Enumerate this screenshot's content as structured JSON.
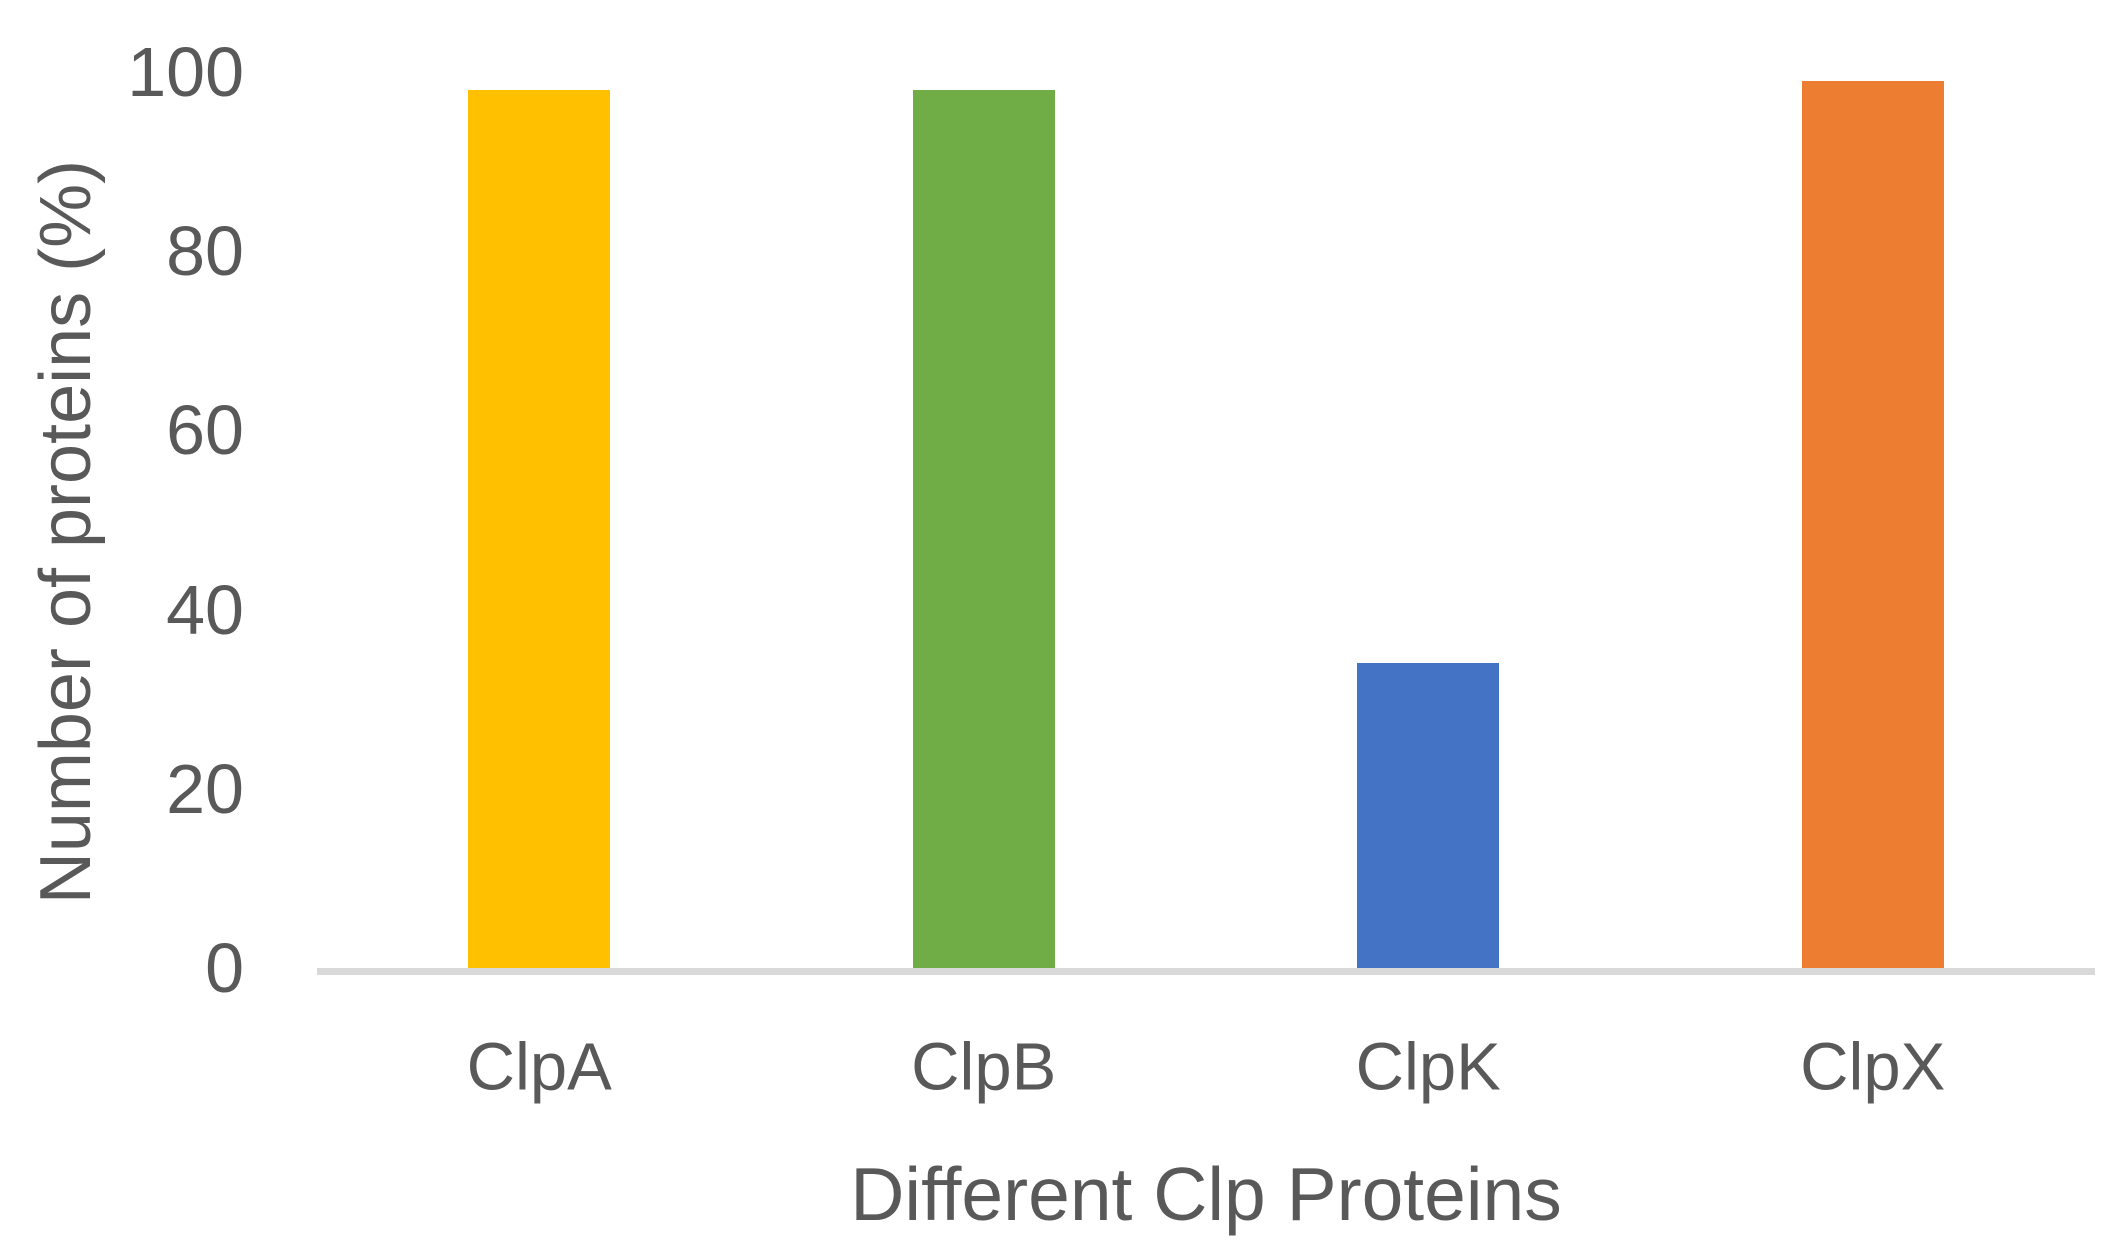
{
  "chart_data": {
    "type": "bar",
    "categories": [
      "ClpA",
      "ClpB",
      "ClpK",
      "ClpX"
    ],
    "values": [
      98,
      98,
      34,
      99
    ],
    "title": "",
    "xlabel": "Different Clp Proteins",
    "ylabel": "Number of proteins (%)",
    "ylim": [
      0,
      100
    ],
    "yticks": [
      0,
      20,
      40,
      60,
      80,
      100
    ],
    "grid": false,
    "legend": false,
    "bar_colors": [
      "#FFC000",
      "#70AD47",
      "#4472C4",
      "#ED7D31"
    ]
  },
  "colors": {
    "axis_line": "#D9D9D9",
    "text": "#595959",
    "background": "#FFFFFF"
  }
}
